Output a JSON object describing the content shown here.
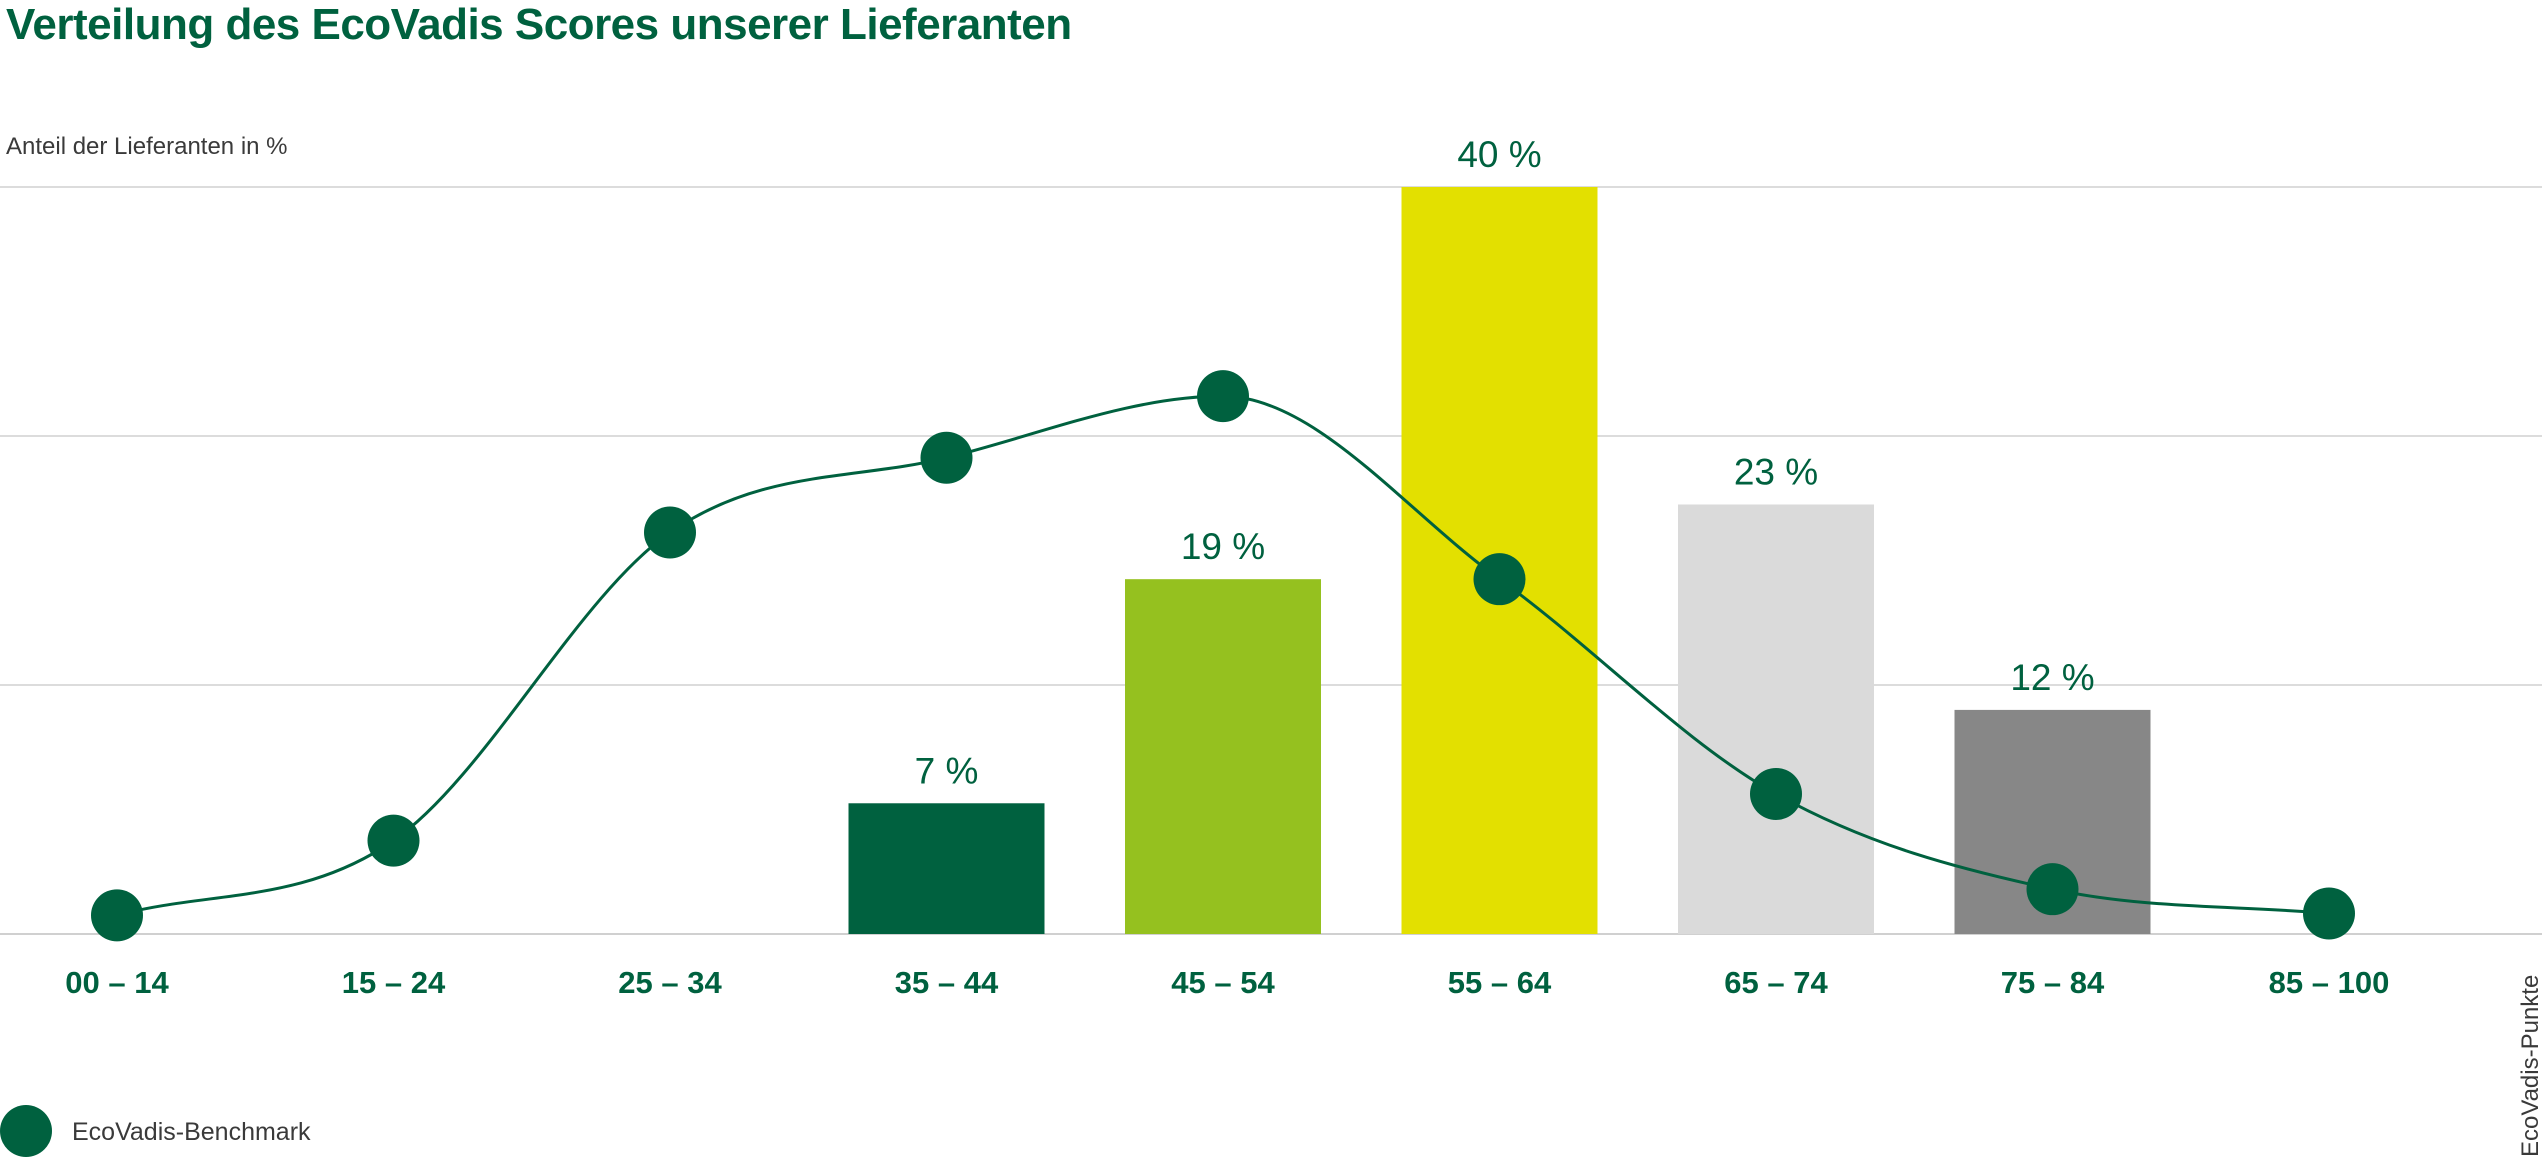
{
  "chart_data": {
    "type": "bar",
    "title": "Verteilung des EcoVadis Scores unserer Lieferanten",
    "ylabel": "Anteil der Lieferanten in %",
    "xlabel": "EcoVadis-Punkte",
    "categories": [
      "00 – 14",
      "15 – 24",
      "25 – 34",
      "35 – 44",
      "45 – 54",
      "55 – 64",
      "65 – 74",
      "75 – 84",
      "85 – 100"
    ],
    "ylim": [
      0,
      40
    ],
    "grid": true,
    "series": [
      {
        "type": "bar",
        "values": [
          0,
          0,
          0,
          7,
          19,
          40,
          23,
          12,
          0
        ],
        "data_labels": [
          "",
          "",
          "",
          "7 %",
          "19 %",
          "40 %",
          "23 %",
          "12 %",
          ""
        ],
        "colors": [
          "#00613f",
          "#00613f",
          "#00613f",
          "#00613f",
          "#95c11f",
          "#e3e000",
          "#dadada",
          "#878787",
          "#878787"
        ]
      },
      {
        "name": "EcoVadis-Benchmark",
        "type": "line",
        "smooth": true,
        "color": "#00613f",
        "values": [
          1,
          5,
          21.5,
          25.5,
          28.8,
          19,
          7.5,
          2.4,
          1.1
        ]
      }
    ],
    "legend": {
      "position": "bottom-left",
      "label": "EcoVadis-Benchmark"
    }
  }
}
